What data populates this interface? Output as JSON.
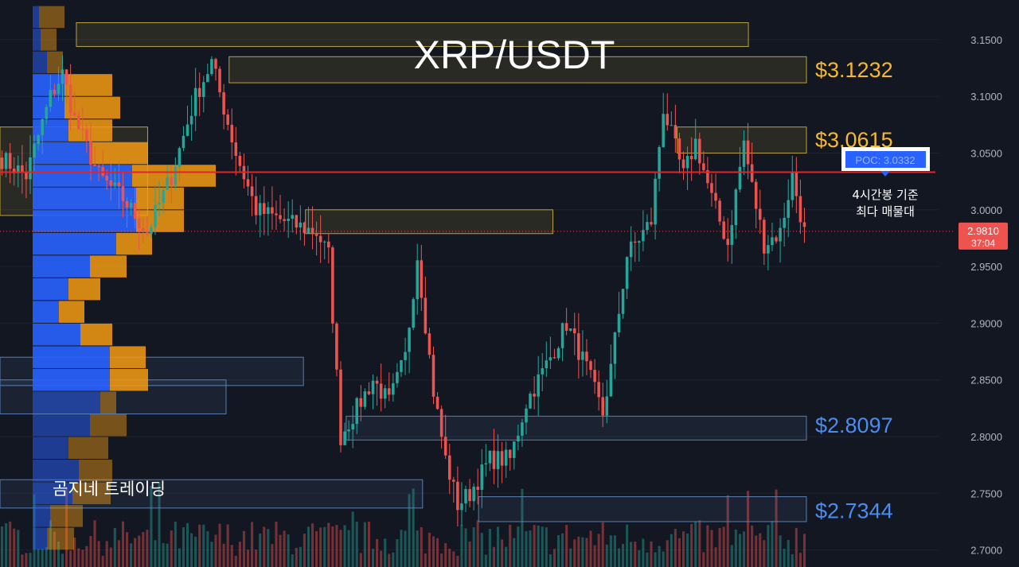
{
  "title": "XRP/USDT",
  "watermark": "곰지네 트레이딩",
  "poc": {
    "label": "POC: 3.0332",
    "note_line1": "4시간봉 기준",
    "note_line2": "최다 매물대"
  },
  "price_badge": {
    "price": "2.9810",
    "countdown": "37:04"
  },
  "level_labels": [
    {
      "text": "$3.1232",
      "value": 3.1232,
      "color": "#f5b82e"
    },
    {
      "text": "$3.0615",
      "value": 3.0615,
      "color": "#f5b82e"
    },
    {
      "text": "$2.8097",
      "value": 2.8097,
      "color": "#4a8cf0"
    },
    {
      "text": "$2.7344",
      "value": 2.7344,
      "color": "#4a8cf0"
    }
  ],
  "colors": {
    "background": "#131722",
    "up": "#26a69a",
    "down": "#ef5350",
    "poc_line": "#e0242c",
    "profile_buy": "#2962ff",
    "profile_sell": "#f59b13",
    "resistance_zone": "#b9a23a",
    "support_zone": "#5a7fb0"
  },
  "chart_data": {
    "type": "candlestick",
    "series": "XRP/USDT 4h",
    "ylim": [
      2.685,
      3.185
    ],
    "yticks": [
      "3.1500",
      "3.1000",
      "3.0500",
      "3.0000",
      "2.9500",
      "2.9000",
      "2.8500",
      "2.8000",
      "2.7500",
      "2.7000"
    ],
    "poc_value": 3.0332,
    "last_price": 2.981,
    "zones": [
      {
        "kind": "resistance",
        "low": 3.144,
        "high": 3.165,
        "x_from": 0.075,
        "x_to": 0.735
      },
      {
        "kind": "resistance",
        "low": 3.112,
        "high": 3.135,
        "x_from": 0.225,
        "x_to": 0.792
      },
      {
        "kind": "resistance",
        "low": 3.05,
        "high": 3.073,
        "x_from": 0.665,
        "x_to": 0.792
      },
      {
        "kind": "resistance",
        "low": 2.995,
        "high": 3.073,
        "x_from": 0.0,
        "x_to": 0.145
      },
      {
        "kind": "resistance",
        "low": 2.979,
        "high": 3.0,
        "x_from": 0.3,
        "x_to": 0.543
      },
      {
        "kind": "support",
        "low": 2.797,
        "high": 2.818,
        "x_from": 0.34,
        "x_to": 0.792
      },
      {
        "kind": "support",
        "low": 2.725,
        "high": 2.747,
        "x_from": 0.47,
        "x_to": 0.792
      },
      {
        "kind": "support",
        "low": 2.845,
        "high": 2.87,
        "x_from": 0.0,
        "x_to": 0.298
      },
      {
        "kind": "support",
        "low": 2.82,
        "high": 2.85,
        "x_from": 0.0,
        "x_to": 0.222
      },
      {
        "kind": "support",
        "low": 2.737,
        "high": 2.762,
        "x_from": 0.0,
        "x_to": 0.415
      }
    ],
    "volume_profile": [
      {
        "price": 3.17,
        "buy": 8,
        "sell": 10
      },
      {
        "price": 3.15,
        "buy": 10,
        "sell": 6
      },
      {
        "price": 3.13,
        "buy": 18,
        "sell": 14
      },
      {
        "price": 3.11,
        "buy": 40,
        "sell": 70
      },
      {
        "price": 3.09,
        "buy": 40,
        "sell": 80
      },
      {
        "price": 3.07,
        "buy": 45,
        "sell": 70
      },
      {
        "price": 3.05,
        "buy": 75,
        "sell": 115
      },
      {
        "price": 3.03,
        "buy": 125,
        "sell": 200
      },
      {
        "price": 3.01,
        "buy": 130,
        "sell": 160
      },
      {
        "price": 2.99,
        "buy": 130,
        "sell": 160
      },
      {
        "price": 2.97,
        "buy": 105,
        "sell": 120
      },
      {
        "price": 2.95,
        "buy": 72,
        "sell": 88
      },
      {
        "price": 2.93,
        "buy": 45,
        "sell": 55
      },
      {
        "price": 2.91,
        "buy": 33,
        "sell": 35
      },
      {
        "price": 2.89,
        "buy": 60,
        "sell": 70
      },
      {
        "price": 2.87,
        "buy": 97,
        "sell": 112
      },
      {
        "price": 2.85,
        "buy": 97,
        "sell": 115
      },
      {
        "price": 2.83,
        "buy": 85,
        "sell": 80
      },
      {
        "price": 2.81,
        "buy": 72,
        "sell": 88
      },
      {
        "price": 2.79,
        "buy": 45,
        "sell": 65
      },
      {
        "price": 2.77,
        "buy": 58,
        "sell": 70
      },
      {
        "price": 2.75,
        "buy": 50,
        "sell": 68
      },
      {
        "price": 2.73,
        "buy": 22,
        "sell": 33
      },
      {
        "price": 2.71,
        "buy": 18,
        "sell": 22
      }
    ],
    "path_points": [
      [
        0,
        3.045
      ],
      [
        6,
        3.03
      ],
      [
        12,
        3.1
      ],
      [
        15,
        3.12
      ],
      [
        18,
        3.08
      ],
      [
        24,
        3.03
      ],
      [
        30,
        3.01
      ],
      [
        36,
        2.98
      ],
      [
        42,
        3.03
      ],
      [
        48,
        3.1
      ],
      [
        52,
        3.13
      ],
      [
        58,
        3.05
      ],
      [
        63,
        3.0
      ],
      [
        70,
        2.99
      ],
      [
        78,
        2.98
      ],
      [
        81,
        2.96
      ],
      [
        84,
        2.8
      ],
      [
        92,
        2.85
      ],
      [
        96,
        2.83
      ],
      [
        100,
        2.87
      ],
      [
        103,
        2.96
      ],
      [
        107,
        2.84
      ],
      [
        110,
        2.78
      ],
      [
        113,
        2.74
      ],
      [
        116,
        2.75
      ],
      [
        121,
        2.78
      ],
      [
        126,
        2.78
      ],
      [
        130,
        2.83
      ],
      [
        136,
        2.87
      ],
      [
        140,
        2.9
      ],
      [
        145,
        2.86
      ],
      [
        149,
        2.82
      ],
      [
        151,
        2.86
      ],
      [
        155,
        2.96
      ],
      [
        161,
        2.99
      ],
      [
        164,
        3.09
      ],
      [
        169,
        3.03
      ],
      [
        172,
        3.06
      ],
      [
        176,
        3.01
      ],
      [
        180,
        2.97
      ],
      [
        184,
        3.06
      ],
      [
        186,
        3.02
      ],
      [
        189,
        2.97
      ],
      [
        193,
        2.98
      ],
      [
        196,
        3.03
      ],
      [
        199,
        2.98
      ]
    ]
  }
}
